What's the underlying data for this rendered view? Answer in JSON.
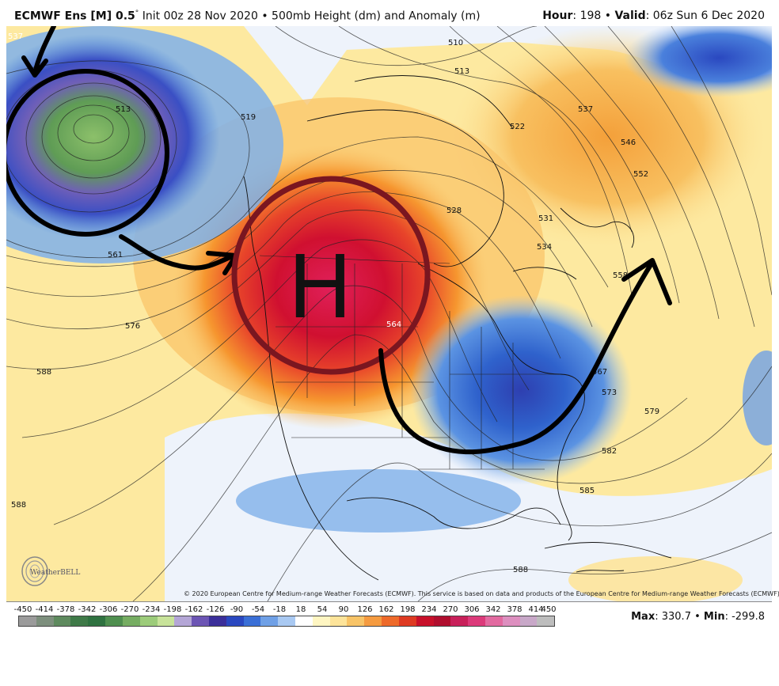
{
  "header": {
    "model": "ECMWF Ens [M] 0.5",
    "degree": "°",
    "init": "Init 00z 28 Nov 2020",
    "bullet": "•",
    "product": "500mb Height (dm) and Anomaly (m)",
    "hour_label": "Hour",
    "hour_value": ": 198",
    "valid_label": "Valid",
    "valid_value": ": 06z Sun 6 Dec 2020"
  },
  "map": {
    "high_label": "H",
    "contour_labels": [
      "513",
      "519",
      "510",
      "513",
      "522",
      "537",
      "546",
      "552",
      "528",
      "531",
      "534",
      "558",
      "561",
      "576",
      "588",
      "564",
      "567",
      "573",
      "579",
      "582",
      "588",
      "588",
      "537",
      "585",
      "588"
    ],
    "annotation_color": "#000000",
    "high_circle_color": "#7a1620",
    "anomaly_colors": {
      "strong_positive": "#c0102a",
      "positive": "#f7a236",
      "weak_positive": "#fde9a0",
      "neutral": "#f4f7fb",
      "negative": "#3d78d8",
      "strong_negative": "#5b46a8"
    }
  },
  "copyright": "© 2020 European Centre for Medium-range Weather Forecasts (ECMWF). This service is based on data and products of the European Centre for Medium-range Weather Forecasts (ECMWF).",
  "logo_text": "WeatherBELL",
  "scale": {
    "ticks": [
      "-450",
      "-414",
      "-378",
      "-342",
      "-306",
      "-270",
      "-234",
      "-198",
      "-162",
      "-126",
      "-90",
      "-54",
      "-18",
      "18",
      "54",
      "90",
      "126",
      "162",
      "198",
      "234",
      "270",
      "306",
      "342",
      "378",
      "414",
      "450"
    ],
    "colors": [
      "#9b9b9b",
      "#7d8f7d",
      "#5e8a5e",
      "#3f7a48",
      "#2f7240",
      "#4f8f4f",
      "#76ad62",
      "#9ccc7a",
      "#c8e39a",
      "#b4a6d6",
      "#6c55b4",
      "#3b2f9a",
      "#2a48c0",
      "#3a6fd6",
      "#6fa0e6",
      "#a9c9f2",
      "#ffffff",
      "#fff6c2",
      "#fde49a",
      "#f8c467",
      "#f59b40",
      "#ee6a2a",
      "#de3a22",
      "#c8102a",
      "#b00e2e",
      "#c8205a",
      "#dc3a7a",
      "#e26aa0",
      "#dd8fbf",
      "#c8a8c8",
      "#bdbdbd"
    ],
    "max_label": "Max",
    "max_value": ": 330.7",
    "min_label": "Min",
    "min_value": ": -299.8"
  }
}
